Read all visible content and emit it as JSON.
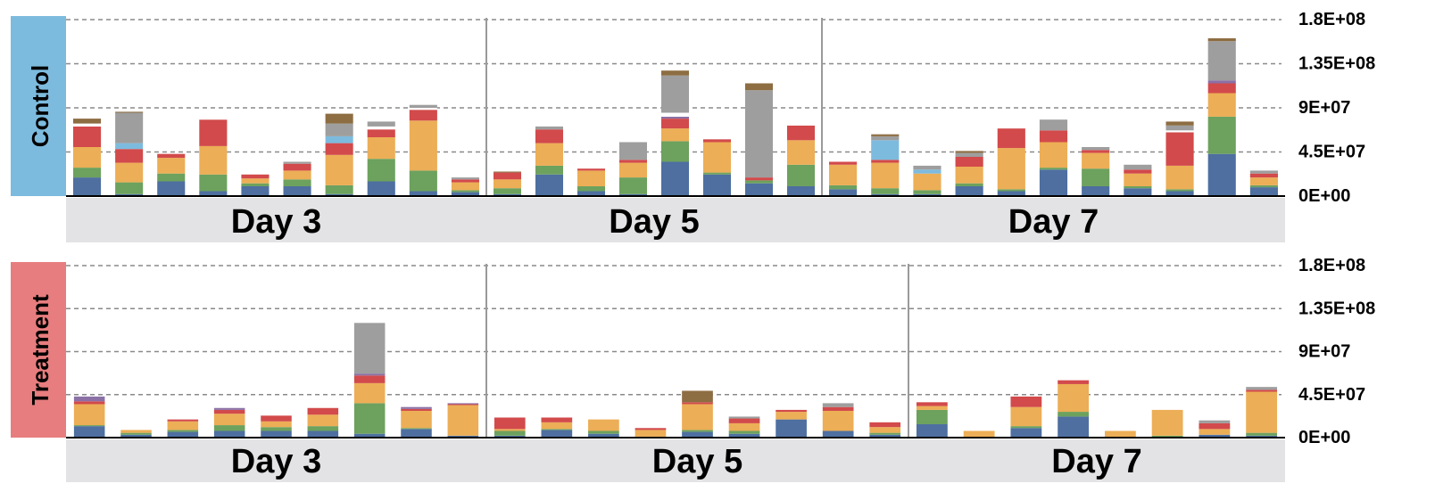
{
  "chart_data": [
    {
      "type": "bar",
      "stacked": true,
      "panel": "Control",
      "ylim": [
        0,
        180000000
      ],
      "y_ticks": [
        "1.8E+08",
        "1.35E+08",
        "9E+07",
        "4.5E+07",
        "0E+00"
      ],
      "y_tick_values": [
        180000000,
        135000000,
        90000000,
        45000000,
        0
      ],
      "grid": true,
      "groups": [
        {
          "label": "Day 3",
          "bars": [
            [
              19000000,
              10000000,
              21000000,
              21000000,
              0,
              0,
              3000000,
              0,
              5000000
            ],
            [
              2000000,
              12000000,
              20000000,
              14000000,
              0,
              6000000,
              0,
              31000000,
              1000000
            ],
            [
              15000000,
              8000000,
              16000000,
              4000000,
              0,
              0,
              0,
              0,
              0
            ],
            [
              5000000,
              17000000,
              29000000,
              27000000,
              0,
              0,
              4000000,
              0,
              0
            ],
            [
              10000000,
              3000000,
              5000000,
              4000000,
              0,
              0,
              0,
              0,
              0
            ],
            [
              10000000,
              7000000,
              9000000,
              7000000,
              0,
              0,
              0,
              2000000,
              0
            ],
            [
              2000000,
              9000000,
              31000000,
              12000000,
              0,
              7000000,
              0,
              13000000,
              10000000
            ],
            [
              15000000,
              23000000,
              22000000,
              8000000,
              0,
              0,
              3000000,
              5000000,
              0
            ],
            [
              5000000,
              21000000,
              51000000,
              11000000,
              0,
              0,
              2000000,
              3000000,
              0
            ],
            [
              4000000,
              2000000,
              8000000,
              3000000,
              0,
              0,
              0,
              2000000,
              0
            ]
          ]
        },
        {
          "label": "Day 5",
          "bars": [
            [
              2000000,
              6000000,
              9000000,
              7000000,
              0,
              0,
              0,
              0,
              1000000
            ],
            [
              22000000,
              9000000,
              23000000,
              14000000,
              0,
              0,
              0,
              3000000,
              0
            ],
            [
              5000000,
              5000000,
              16000000,
              2000000,
              0,
              0,
              0,
              0,
              0
            ],
            [
              2000000,
              17000000,
              15000000,
              3000000,
              0,
              0,
              0,
              18000000,
              0
            ],
            [
              35000000,
              21000000,
              13000000,
              10000000,
              2000000,
              0,
              4000000,
              38000000,
              5000000
            ],
            [
              22000000,
              2000000,
              31000000,
              3000000,
              0,
              0,
              2000000,
              0,
              0
            ],
            [
              13000000,
              3000000,
              0,
              3000000,
              0,
              0,
              0,
              89000000,
              7000000
            ],
            [
              10000000,
              22000000,
              25000000,
              15000000,
              0,
              0,
              2000000,
              0,
              0
            ]
          ]
        },
        {
          "label": "Day 7",
          "bars": [
            [
              7000000,
              4000000,
              21000000,
              3000000,
              0,
              0,
              0,
              0,
              0
            ],
            [
              2000000,
              6000000,
              26000000,
              3000000,
              0,
              20000000,
              0,
              4000000,
              2000000
            ],
            [
              2000000,
              4000000,
              17000000,
              0,
              0,
              4000000,
              0,
              4000000,
              0
            ],
            [
              10000000,
              3000000,
              17000000,
              10000000,
              0,
              0,
              0,
              4000000,
              2000000
            ],
            [
              5000000,
              2000000,
              42000000,
              20000000,
              0,
              0,
              2000000,
              0,
              0
            ],
            [
              27000000,
              2000000,
              26000000,
              12000000,
              0,
              0,
              0,
              11000000,
              0
            ],
            [
              10000000,
              18000000,
              16000000,
              3000000,
              0,
              0,
              0,
              3000000,
              0
            ],
            [
              8000000,
              2000000,
              13000000,
              4000000,
              0,
              0,
              0,
              5000000,
              0
            ],
            [
              5000000,
              2000000,
              24000000,
              34000000,
              0,
              0,
              2000000,
              5000000,
              4000000
            ],
            [
              43000000,
              38000000,
              24000000,
              10000000,
              3000000,
              0,
              0,
              40000000,
              3000000
            ],
            [
              9000000,
              2000000,
              8000000,
              4000000,
              0,
              0,
              0,
              3000000,
              0
            ]
          ]
        }
      ]
    },
    {
      "type": "bar",
      "stacked": true,
      "panel": "Treatment",
      "ylim": [
        0,
        180000000
      ],
      "y_ticks": [
        "1.8E+08",
        "1.35E+08",
        "9E+07",
        "4.5E+07",
        "0E+00"
      ],
      "y_tick_values": [
        180000000,
        135000000,
        90000000,
        45000000,
        0
      ],
      "grid": true,
      "groups": [
        {
          "label": "Day 3",
          "bars": [
            [
              12000000,
              1000000,
              22000000,
              3000000,
              5000000,
              0,
              0,
              0,
              0
            ],
            [
              3000000,
              2000000,
              3000000,
              0,
              0,
              0,
              0,
              0,
              0
            ],
            [
              6000000,
              2000000,
              9000000,
              2000000,
              0,
              0,
              0,
              0,
              0
            ],
            [
              7000000,
              6000000,
              12000000,
              4000000,
              2000000,
              0,
              0,
              0,
              0
            ],
            [
              7000000,
              4000000,
              6000000,
              6000000,
              0,
              0,
              0,
              0,
              0
            ],
            [
              7000000,
              5000000,
              12000000,
              7000000,
              0,
              0,
              0,
              0,
              0
            ],
            [
              4000000,
              32000000,
              21000000,
              8000000,
              2000000,
              0,
              0,
              53000000,
              0
            ],
            [
              9000000,
              1000000,
              18000000,
              2000000,
              2000000,
              0,
              0,
              0,
              0
            ],
            [
              2000000,
              0,
              32000000,
              1000000,
              1000000,
              0,
              0,
              0,
              0
            ]
          ]
        },
        {
          "label": "Day 5",
          "bars": [
            [
              2000000,
              5000000,
              2000000,
              12000000,
              0,
              0,
              0,
              0,
              0
            ],
            [
              8000000,
              1000000,
              7000000,
              5000000,
              0,
              0,
              0,
              0,
              0
            ],
            [
              4000000,
              3000000,
              12000000,
              0,
              0,
              0,
              0,
              0,
              0
            ],
            [
              1000000,
              0,
              7000000,
              2000000,
              0,
              0,
              0,
              0,
              0
            ],
            [
              6000000,
              2000000,
              27000000,
              2000000,
              0,
              0,
              0,
              0,
              12000000
            ],
            [
              4000000,
              3000000,
              8000000,
              5000000,
              0,
              0,
              0,
              2000000,
              0
            ],
            [
              19000000,
              0,
              8000000,
              2000000,
              0,
              0,
              0,
              0,
              0
            ],
            [
              7000000,
              0,
              21000000,
              4000000,
              0,
              0,
              0,
              4000000,
              0
            ],
            [
              3000000,
              2000000,
              6000000,
              5000000,
              0,
              0,
              0,
              0,
              0
            ]
          ]
        },
        {
          "label": "Day 7",
          "bars": [
            [
              14000000,
              15000000,
              4000000,
              4000000,
              0,
              0,
              0,
              0,
              0
            ],
            [
              0,
              0,
              7000000,
              0,
              0,
              0,
              0,
              0,
              0
            ],
            [
              10000000,
              2000000,
              20000000,
              11000000,
              0,
              0,
              0,
              0,
              0
            ],
            [
              22000000,
              5000000,
              29000000,
              4000000,
              0,
              0,
              0,
              0,
              0
            ],
            [
              0,
              0,
              7000000,
              0,
              0,
              0,
              0,
              0,
              0
            ],
            [
              0,
              2000000,
              27000000,
              0,
              0,
              0,
              0,
              0,
              0
            ],
            [
              3000000,
              0,
              6000000,
              6000000,
              0,
              0,
              0,
              3000000,
              0
            ],
            [
              2000000,
              3000000,
              43000000,
              2000000,
              0,
              0,
              0,
              3000000,
              0
            ]
          ]
        }
      ]
    }
  ],
  "segment_colors": [
    "#4e6fa0",
    "#6da15e",
    "#ecae56",
    "#d24a4b",
    "#8b70a5",
    "#7dbbde",
    "#ffffff",
    "#9e9e9e",
    "#8d6d42"
  ],
  "panel_colors": {
    "Control": "#7dbbde",
    "Treatment": "#e77d7e"
  },
  "group_bg_color": "#e3e3e5"
}
